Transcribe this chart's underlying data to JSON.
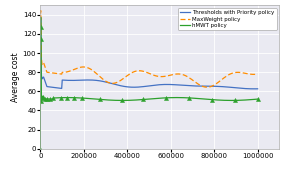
{
  "title": "",
  "ylabel": "Average cost",
  "xlabel": "",
  "xlim": [
    0,
    1100000
  ],
  "ylim": [
    0,
    150
  ],
  "yticks": [
    0,
    20,
    40,
    60,
    80,
    100,
    120,
    140
  ],
  "xticks": [
    0,
    200000,
    400000,
    600000,
    800000,
    1000000
  ],
  "xticklabels": [
    "0",
    "200000",
    "400000",
    "600000",
    "800000",
    "1000000"
  ],
  "legend_labels": [
    "Thresholds with Priority policy",
    "MaxWeight policy",
    "hMWT policy"
  ],
  "line1_color": "#4472c4",
  "line2_color": "#ff8c00",
  "line3_color": "#2ca02c",
  "background_color": "#eaeaf2"
}
